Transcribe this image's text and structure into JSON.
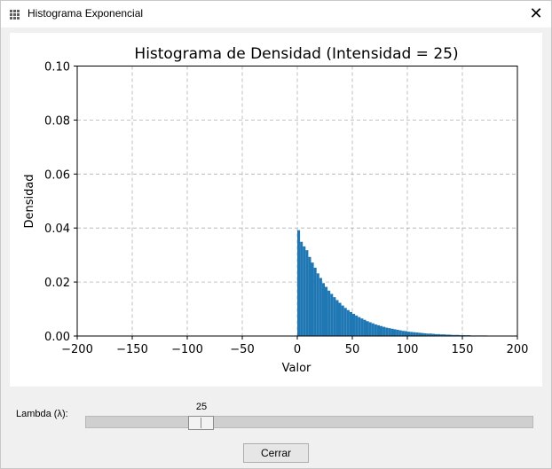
{
  "window": {
    "title": "Histograma Exponencial",
    "close_glyph": "✕",
    "icon": "grid-icon"
  },
  "controls": {
    "lambda_label": "Lambda (λ):",
    "slider_value": "25",
    "slider": {
      "min": 1,
      "max": 100,
      "value": 25
    },
    "close_button_label": "Cerrar"
  },
  "chart_data": {
    "type": "bar",
    "title": "Histograma de Densidad (Intensidad = 25)",
    "xlabel": "Valor",
    "ylabel": "Densidad",
    "xlim": [
      -200,
      200
    ],
    "ylim": [
      0,
      0.1
    ],
    "xticks": [
      -200,
      -150,
      -100,
      -50,
      0,
      50,
      100,
      150,
      200
    ],
    "xtick_labels": [
      "−200",
      "−150",
      "−100",
      "−50",
      "0",
      "50",
      "100",
      "150",
      "200"
    ],
    "yticks": [
      0,
      0.02,
      0.04,
      0.06,
      0.08,
      0.1
    ],
    "ytick_labels": [
      "0.00",
      "0.02",
      "0.04",
      "0.06",
      "0.08",
      "0.10"
    ],
    "grid": true,
    "bar_color": "#1f77b4",
    "bin_width": 2.5,
    "bin_start": 0,
    "values": [
      0.0392,
      0.0349,
      0.0332,
      0.0318,
      0.0293,
      0.0272,
      0.0253,
      0.0232,
      0.0215,
      0.0196,
      0.0182,
      0.0168,
      0.0156,
      0.0144,
      0.0133,
      0.0123,
      0.0113,
      0.0104,
      0.0096,
      0.0089,
      0.0082,
      0.0076,
      0.007,
      0.0065,
      0.006,
      0.0055,
      0.0051,
      0.0047,
      0.0043,
      0.004,
      0.0037,
      0.0034,
      0.0031,
      0.0029,
      0.0027,
      0.0025,
      0.0023,
      0.0021,
      0.0019,
      0.0018,
      0.0016,
      0.0015,
      0.0014,
      0.0013,
      0.0012,
      0.0011,
      0.001,
      0.0009,
      0.0009,
      0.0008,
      0.0007,
      0.0007,
      0.0006,
      0.0006,
      0.0005,
      0.0005,
      0.0004,
      0.0004,
      0.0004,
      0.0003,
      0.0003,
      0.0003,
      0.0003,
      0.0002,
      0.0002,
      0.0002,
      0.0002,
      0.0002,
      0.0002,
      0.0001,
      0.0001,
      0.0001
    ]
  }
}
